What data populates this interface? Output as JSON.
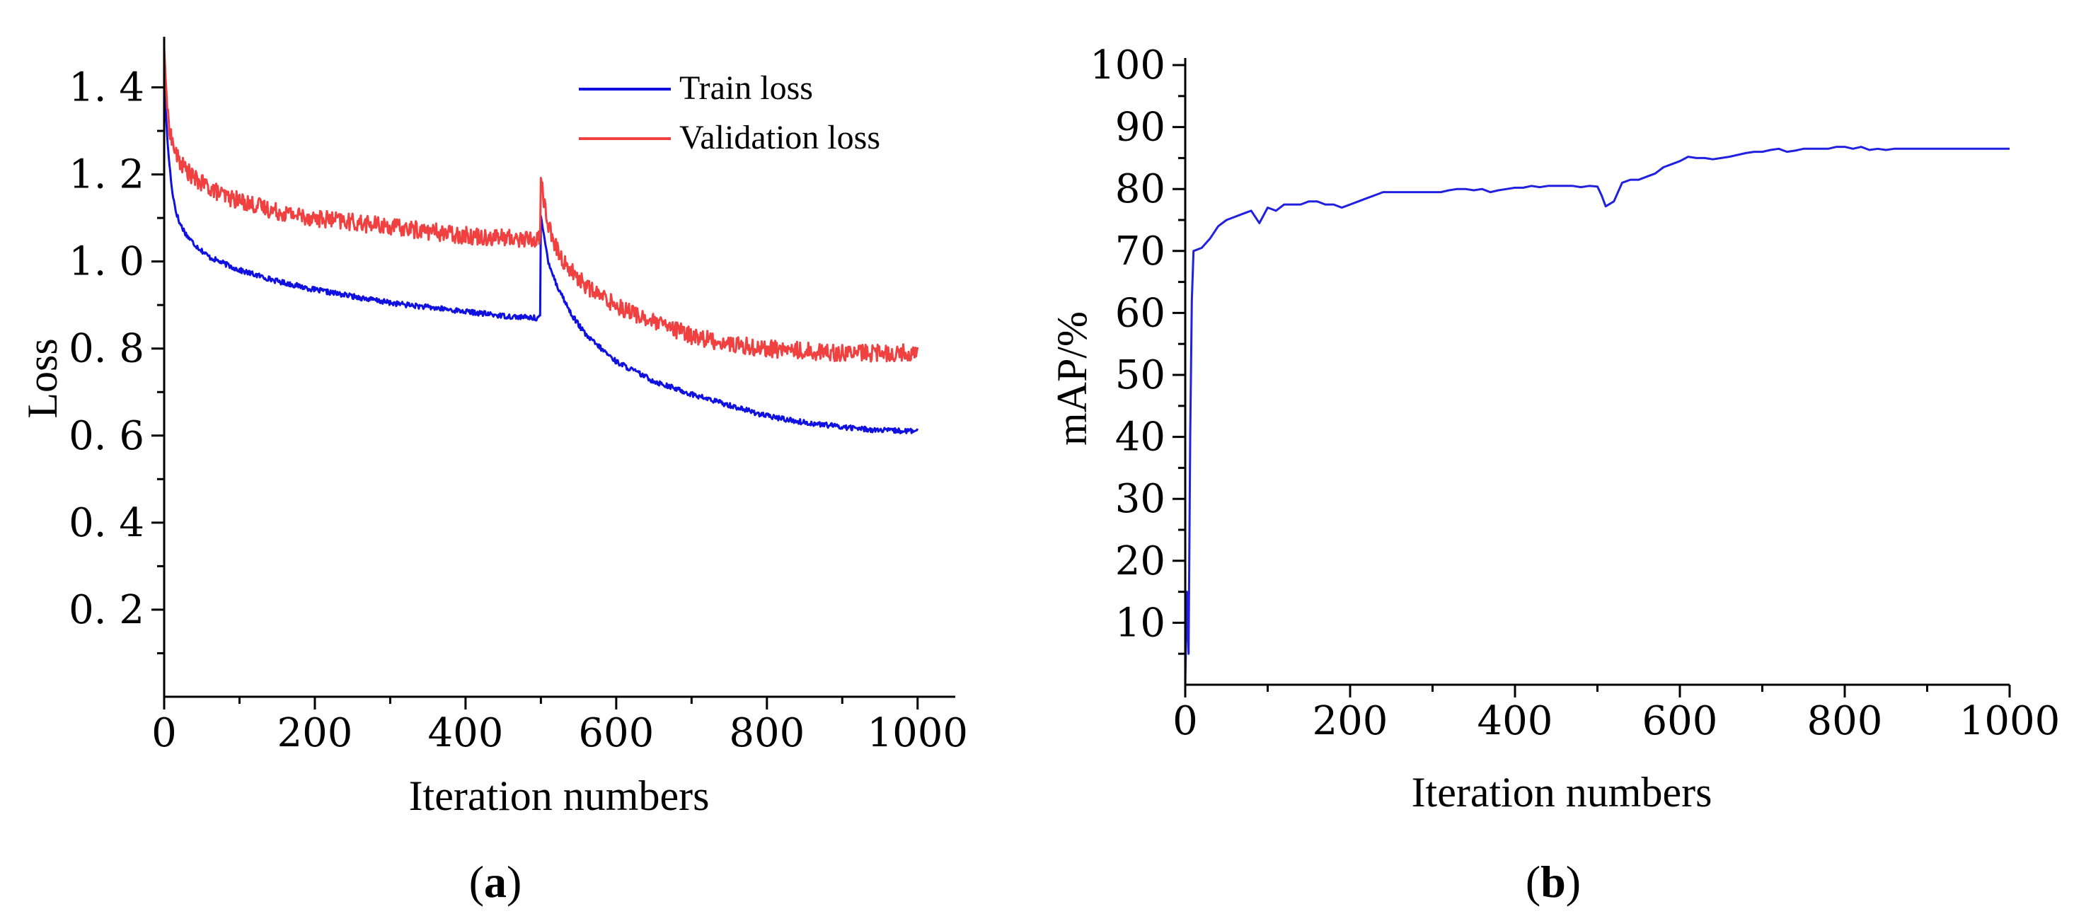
{
  "chart_data": [
    {
      "id": "a",
      "type": "line",
      "caption": "(a)",
      "caption_letter": "a",
      "xlabel": "Iteration numbers",
      "ylabel": "Loss",
      "xlim": [
        0,
        1050
      ],
      "ylim": [
        0.0,
        1.5
      ],
      "xticks": [
        0,
        200,
        400,
        600,
        800,
        1000
      ],
      "xtick_labels": [
        "0",
        "200",
        "400",
        "600",
        "800",
        "1000"
      ],
      "yticks": [
        0.2,
        0.4,
        0.6,
        0.8,
        1.0,
        1.2,
        1.4
      ],
      "ytick_labels": [
        "0. 2",
        "0. 4",
        "0. 6",
        "0. 8",
        "1. 0",
        "1. 2",
        "1. 4"
      ],
      "legend_position": "top-right",
      "series": [
        {
          "name": "Train loss",
          "color": "#1010e0",
          "x": [
            0,
            2,
            5,
            10,
            15,
            20,
            30,
            40,
            50,
            60,
            80,
            100,
            150,
            200,
            250,
            300,
            350,
            400,
            450,
            495,
            499,
            500,
            505,
            510,
            520,
            540,
            560,
            580,
            600,
            650,
            700,
            750,
            800,
            850,
            900,
            950,
            1000
          ],
          "y": [
            1.48,
            1.35,
            1.26,
            1.17,
            1.12,
            1.09,
            1.06,
            1.04,
            1.025,
            1.01,
            0.995,
            0.98,
            0.955,
            0.935,
            0.92,
            0.905,
            0.895,
            0.885,
            0.875,
            0.87,
            0.875,
            1.1,
            1.05,
            1.0,
            0.95,
            0.88,
            0.83,
            0.8,
            0.77,
            0.725,
            0.695,
            0.67,
            0.645,
            0.63,
            0.62,
            0.612,
            0.61
          ]
        },
        {
          "name": "Validation loss",
          "color": "#f04040",
          "x": [
            0,
            2,
            5,
            10,
            15,
            20,
            30,
            40,
            50,
            60,
            80,
            100,
            150,
            200,
            250,
            300,
            350,
            400,
            450,
            495,
            499,
            500,
            503,
            508,
            515,
            530,
            550,
            570,
            600,
            650,
            700,
            750,
            800,
            850,
            900,
            950,
            1000
          ],
          "y": [
            1.49,
            1.42,
            1.33,
            1.28,
            1.25,
            1.23,
            1.21,
            1.19,
            1.18,
            1.17,
            1.15,
            1.14,
            1.115,
            1.1,
            1.09,
            1.08,
            1.07,
            1.06,
            1.055,
            1.05,
            1.06,
            1.2,
            1.15,
            1.1,
            1.05,
            1.0,
            0.96,
            0.93,
            0.9,
            0.86,
            0.83,
            0.81,
            0.8,
            0.795,
            0.79,
            0.79,
            0.79
          ]
        }
      ]
    },
    {
      "id": "b",
      "type": "line",
      "caption": "(b)",
      "caption_letter": "b",
      "xlabel": "Iteration numbers",
      "ylabel": "mAP/%",
      "xlim": [
        0,
        1000
      ],
      "ylim": [
        0,
        100
      ],
      "xticks": [
        0,
        200,
        400,
        600,
        800,
        1000
      ],
      "xtick_labels": [
        "0",
        "200",
        "400",
        "600",
        "800",
        "1000"
      ],
      "yticks": [
        10,
        20,
        30,
        40,
        50,
        60,
        70,
        80,
        90,
        100
      ],
      "ytick_labels": [
        "10",
        "20",
        "30",
        "40",
        "50",
        "60",
        "70",
        "80",
        "90",
        "100"
      ],
      "series": [
        {
          "name": "mAP",
          "color": "#2020e0",
          "x": [
            0,
            2,
            4,
            6,
            8,
            10,
            20,
            30,
            40,
            50,
            60,
            70,
            80,
            90,
            100,
            110,
            120,
            130,
            140,
            150,
            160,
            170,
            180,
            190,
            200,
            210,
            220,
            230,
            240,
            250,
            260,
            270,
            280,
            290,
            300,
            310,
            320,
            330,
            340,
            350,
            360,
            370,
            380,
            390,
            400,
            410,
            420,
            430,
            440,
            450,
            460,
            470,
            480,
            490,
            500,
            505,
            510,
            520,
            530,
            540,
            550,
            560,
            570,
            580,
            590,
            600,
            610,
            620,
            630,
            640,
            650,
            660,
            670,
            680,
            690,
            700,
            710,
            720,
            730,
            740,
            750,
            760,
            770,
            780,
            790,
            800,
            810,
            820,
            830,
            840,
            850,
            860,
            870,
            880,
            890,
            900,
            950,
            1000
          ],
          "y": [
            0,
            15,
            5,
            40,
            62,
            70,
            70.5,
            72,
            74,
            75,
            75.5,
            76,
            76.5,
            74.5,
            77,
            76.5,
            77.5,
            77.5,
            77.5,
            78,
            78,
            77.5,
            77.5,
            77,
            77.5,
            78,
            78.5,
            79,
            79.5,
            79.5,
            79.5,
            79.5,
            79.5,
            79.5,
            79.5,
            79.5,
            79.8,
            80,
            80,
            79.8,
            80,
            79.5,
            79.8,
            80,
            80.2,
            80.2,
            80.5,
            80.3,
            80.5,
            80.5,
            80.5,
            80.5,
            80.3,
            80.5,
            80.4,
            79,
            77.2,
            78,
            81,
            81.5,
            81.5,
            82,
            82.5,
            83.5,
            84,
            84.5,
            85.2,
            85,
            85,
            84.8,
            85,
            85.2,
            85.5,
            85.8,
            86,
            86,
            86.3,
            86.5,
            86,
            86.2,
            86.5,
            86.5,
            86.5,
            86.5,
            86.8,
            86.8,
            86.5,
            86.8,
            86.3,
            86.5,
            86.3,
            86.5,
            86.5,
            86.5,
            86.5,
            86.5,
            86.5,
            86.5
          ]
        }
      ]
    }
  ]
}
